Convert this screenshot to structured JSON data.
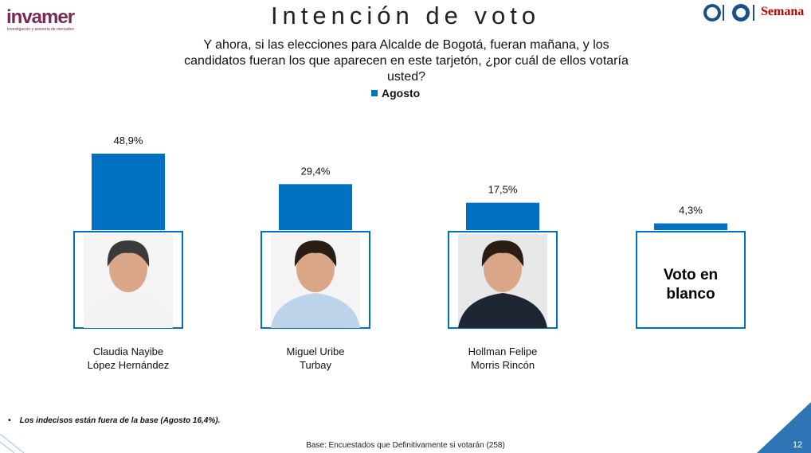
{
  "brand": {
    "logo": "invamer",
    "tagline": "Investigación y asesoría de mercados",
    "partner": "Semana"
  },
  "chart_data": {
    "type": "bar",
    "title": "Intención de voto",
    "subtitle": "Y ahora, si las elecciones para Alcalde de Bogotá, fueran mañana, y los candidatos fueran los que aparecen en este tarjetón, ¿por cuál de ellos votaría usted?",
    "categories": [
      "Claudia Nayibe López Hernández",
      "Miguel Uribe Turbay",
      "Hollman Felipe Morris Rincón",
      "Voto en blanco"
    ],
    "series": [
      {
        "name": "Agosto",
        "color": "#0070c0",
        "values": [
          48.9,
          29.4,
          17.5,
          4.3
        ],
        "value_labels": [
          "48,9%",
          "29,4%",
          "17,5%",
          "4,3%"
        ]
      }
    ]
  },
  "footnote": "Los indecisos están fuera de la base (Agosto 16,4%).",
  "base_note": "Base: Encuestados que Definitivamente si votarán (258)",
  "page_number": "12"
}
